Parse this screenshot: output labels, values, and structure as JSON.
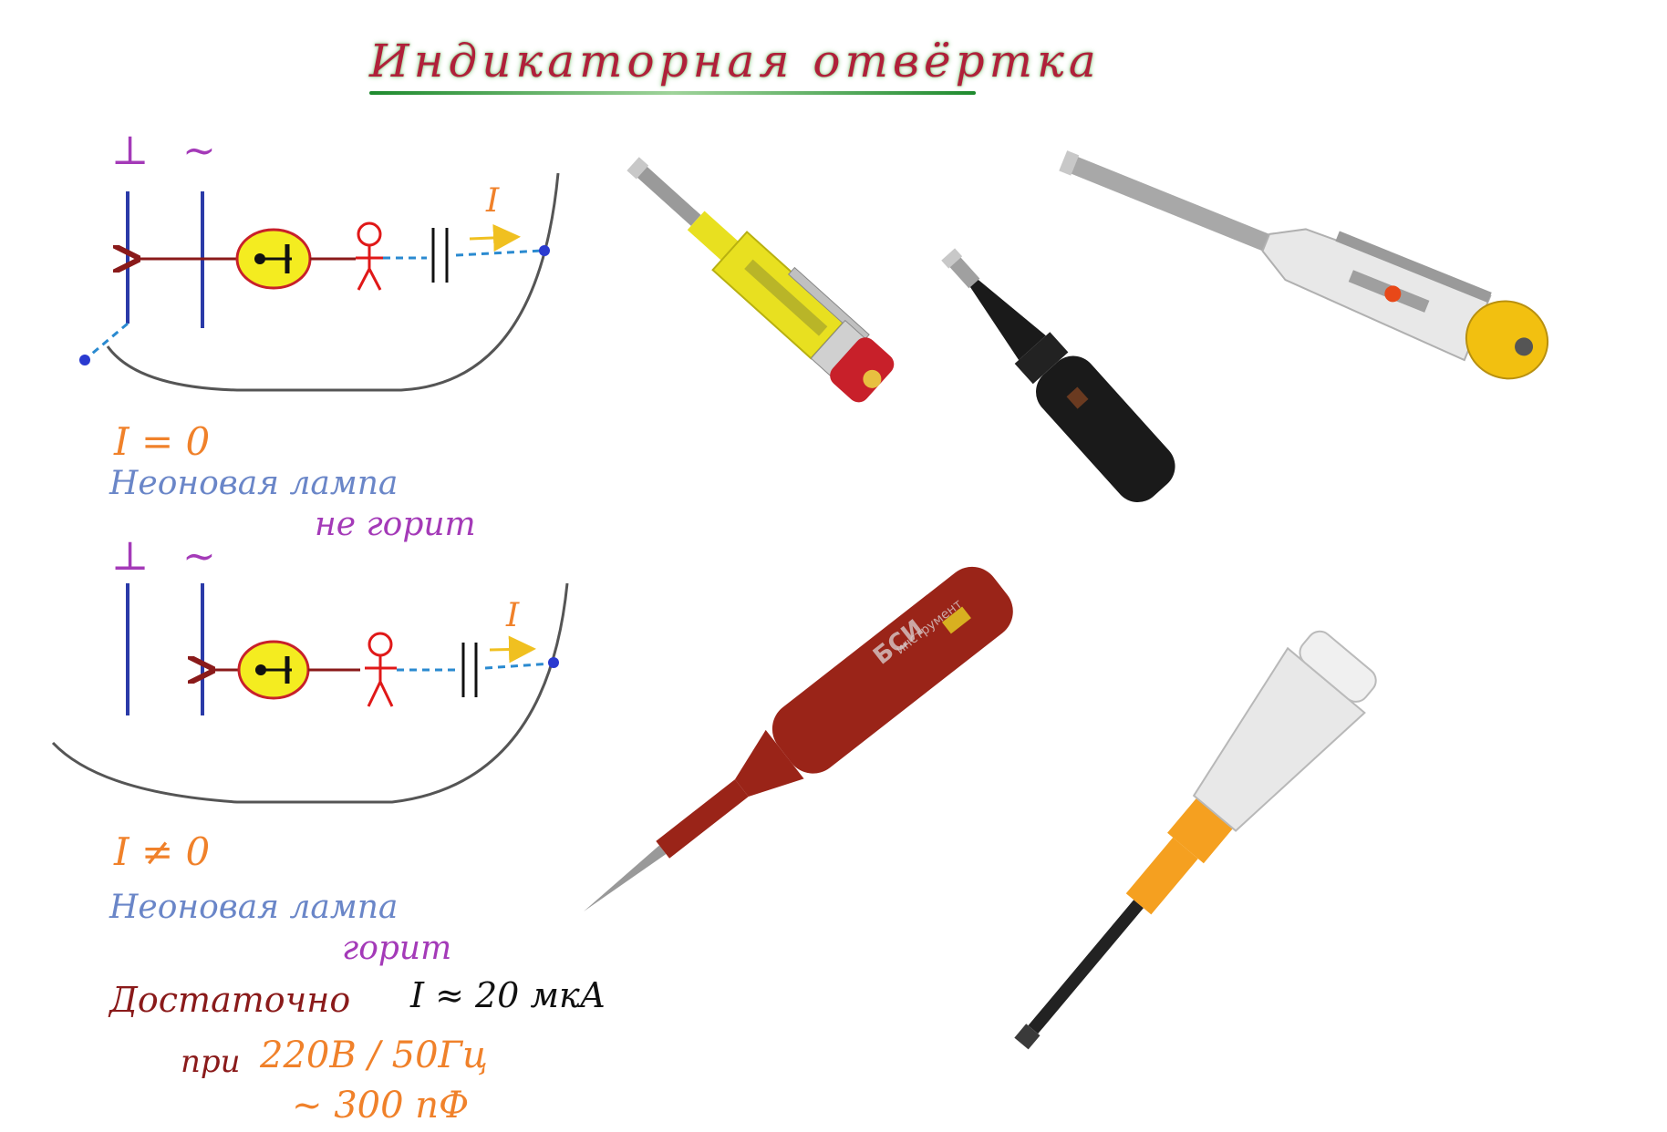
{
  "title": "Индикаторная отвёртка",
  "diagram_top": {
    "ground_symbol": "⊥",
    "ac_symbol": "~",
    "current_label": "I",
    "result": "I = 0",
    "lamp_text_line1": "Неоновая лампа",
    "lamp_text_line2": "не горит"
  },
  "diagram_bottom": {
    "ground_symbol": "⊥",
    "ac_symbol": "~",
    "current_label": "I",
    "result": "I ≠ 0",
    "lamp_text_line1": "Неоновая лампа",
    "lamp_text_line2": "горит"
  },
  "notes": {
    "enough_word": "Достаточно",
    "current_value": "I ≈ 20 мкА",
    "at_word": "при",
    "voltage_freq": "220В / 50Гц",
    "capacitance": "~ 300 пФ"
  },
  "screwdrivers": [
    {
      "name": "yellow",
      "handle_color": "#e8e020",
      "cap_color": "#c8202a"
    },
    {
      "name": "black",
      "handle_color": "#1a1a1a",
      "cap_color": "#111111"
    },
    {
      "name": "clear-yellow-cap",
      "handle_color": "#d8d8d8",
      "cap_color": "#f2c010"
    },
    {
      "name": "red-bsi",
      "handle_color": "#9a2418",
      "cap_color": "#7a1a10",
      "brand": "БСИ",
      "brand_sub": "инструмент"
    },
    {
      "name": "orange-clear",
      "handle_color": "#dcdcdc",
      "cap_color": "#f5a020"
    }
  ]
}
